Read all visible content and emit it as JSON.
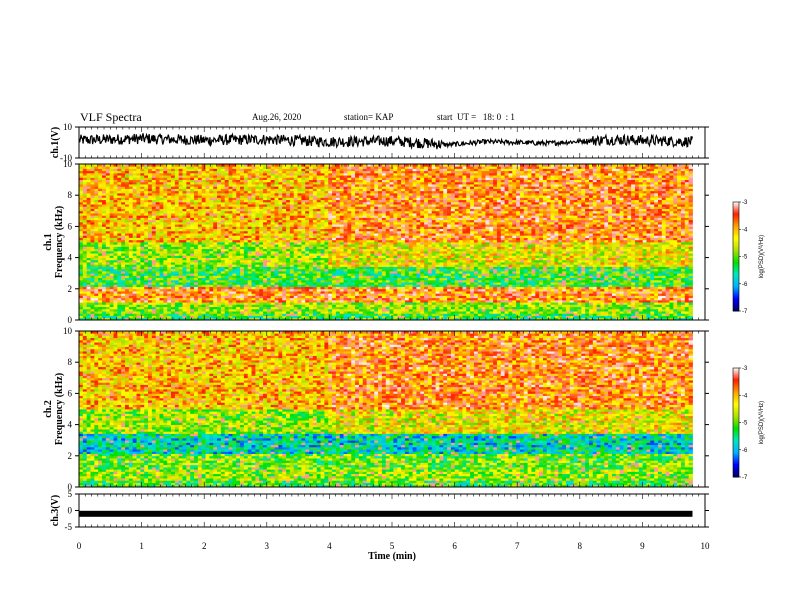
{
  "header": {
    "title": "VLF Spectra",
    "date": "Aug.26, 2020",
    "station": "station= KAP",
    "start": "start  UT =   18: 0  : 1"
  },
  "chart_data": [
    {
      "type": "line",
      "panel": "ch1-waveform",
      "ylabel": "ch.1(V)",
      "ylim": [
        -10,
        10
      ],
      "yticks": [
        "10",
        "-10"
      ],
      "xlim": [
        0,
        10
      ],
      "envelope": [
        {
          "x": 0.0,
          "y": 1.5
        },
        {
          "x": 1.0,
          "y": 2.5
        },
        {
          "x": 2.0,
          "y": 1.5
        },
        {
          "x": 3.0,
          "y": 2.0
        },
        {
          "x": 4.0,
          "y": 0.5
        },
        {
          "x": 5.0,
          "y": 1.0
        },
        {
          "x": 5.9,
          "y": -1.5
        },
        {
          "x": 6.5,
          "y": 0.5
        },
        {
          "x": 7.5,
          "y": -0.5
        },
        {
          "x": 8.5,
          "y": 2.0
        },
        {
          "x": 9.8,
          "y": 0.5
        }
      ]
    },
    {
      "type": "heatmap",
      "panel": "ch1-spectrogram",
      "ylabel": "ch.1\nFrequency  (kHz)",
      "ylim": [
        0,
        10
      ],
      "yticks": [
        "0",
        "2",
        "4",
        "6",
        "8",
        "10"
      ],
      "xlim": [
        0,
        10
      ],
      "colorbar": {
        "label": "log(PSD)(V²/Hz)",
        "ticks": [
          "-3",
          "-4",
          "-5",
          "-6",
          "-7"
        ],
        "range": [
          -7,
          -3
        ]
      }
    },
    {
      "type": "heatmap",
      "panel": "ch2-spectrogram",
      "ylabel": "ch.2\nFrequency  (kHz)",
      "ylim": [
        0,
        10
      ],
      "yticks": [
        "0",
        "2",
        "4",
        "6",
        "8",
        "10"
      ],
      "xlim": [
        0,
        10
      ],
      "colorbar": {
        "label": "log(PSD)(V²/Hz)",
        "ticks": [
          "-3",
          "-4",
          "-5",
          "-6",
          "-7"
        ],
        "range": [
          -7,
          -3
        ]
      }
    },
    {
      "type": "line",
      "panel": "ch3-waveform",
      "ylabel": "ch.3(V)",
      "ylim": [
        -5,
        5
      ],
      "yticks": [
        "5",
        "0",
        "-5"
      ],
      "xlim": [
        0,
        10
      ],
      "level": -1.0
    }
  ],
  "xaxis": {
    "label": "Time  (min)",
    "ticks": [
      "0",
      "1",
      "2",
      "3",
      "4",
      "5",
      "6",
      "7",
      "8",
      "9",
      "10"
    ]
  },
  "colors": {
    "colormap": [
      "#000060",
      "#0000ff",
      "#00b0ff",
      "#00e8c0",
      "#00e000",
      "#b0e000",
      "#ffff00",
      "#ffa000",
      "#ff2000",
      "#ffffff"
    ]
  }
}
